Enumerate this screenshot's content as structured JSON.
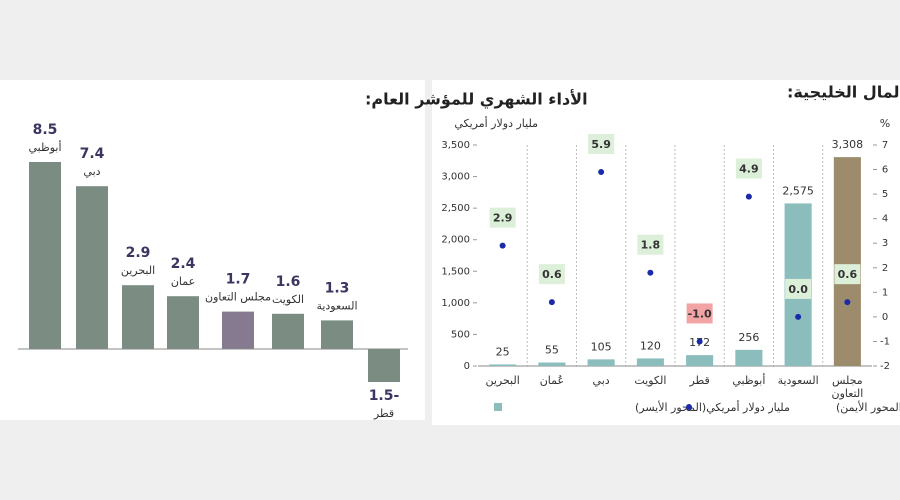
{
  "chart_data": [
    {
      "type": "bar",
      "title": "الأداء الشهري للمؤشر العام:",
      "categories": [
        "أبوظبي",
        "دبي",
        "البحرين",
        "عمان",
        "مجلس التعاون",
        "الكويت",
        "السعودية",
        "قطر"
      ],
      "values": [
        8.5,
        7.4,
        2.9,
        2.4,
        1.7,
        1.6,
        1.3,
        -1.5
      ],
      "value_labels": [
        "8.5",
        "7.4",
        "2.9",
        "2.4",
        "1.7",
        "1.6",
        "1.3",
        "1.5-"
      ],
      "colors": [
        "#7b8d82",
        "#7b8d82",
        "#7b8d82",
        "#7b8d82",
        "#857a90",
        "#7b8d82",
        "#7b8d82",
        "#7b8d82"
      ]
    },
    {
      "type": "combo",
      "title": "القيمة السوقية لأسواق المال الخليجية:",
      "y_label": "مليار دولار أمريكي",
      "y2_label": "%",
      "categories": [
        "البحرين",
        "عُمان",
        "دبي",
        "الكويت",
        "قطر",
        "أبوظبي",
        "السعودية",
        "مجلس التعاون"
      ],
      "ylim": [
        0,
        3500
      ],
      "yticks": [
        0,
        500,
        {
          "value": 1000,
          "label": "1,000"
        },
        {
          "value": 1500,
          "label": "1,500"
        },
        {
          "value": 2000,
          "label": "2,000"
        },
        {
          "value": 2500,
          "label": "2,500"
        },
        {
          "value": 3000,
          "label": "3,000"
        },
        {
          "value": 3500,
          "label": "3,500"
        }
      ],
      "y2lim": [
        -2,
        7
      ],
      "y2ticks": [
        -2,
        -1,
        0,
        1,
        2,
        3,
        4,
        5,
        6,
        7
      ],
      "series": [
        {
          "name": "مليار دولار أمريكي(المحور الأيسر)",
          "kind": "bar",
          "color": "#8cbdbd",
          "colors": [
            "#8cbdbd",
            "#8cbdbd",
            "#8cbdbd",
            "#8cbdbd",
            "#8cbdbd",
            "#8cbdbd",
            "#8cbdbd",
            "#9c8c6c"
          ],
          "values": [
            25,
            55,
            105,
            120,
            172,
            256,
            2575,
            3308
          ],
          "value_labels": [
            "25",
            "55",
            "105",
            "120",
            "172",
            "256",
            "2,575",
            "3,308"
          ]
        },
        {
          "name": "معدل النمو الشهري (المحور الأيمن)",
          "kind": "dot",
          "axis": "y2",
          "color": "#1b2aa8",
          "values": [
            2.9,
            0.6,
            5.9,
            1.8,
            -1.0,
            4.9,
            0.0,
            0.6
          ],
          "value_labels": [
            "2.9",
            "0.6",
            "5.9",
            "1.8",
            "-1.0",
            "4.9",
            "0.0",
            "0.6"
          ],
          "label_colors": [
            "#dcefd8",
            "#dcefd8",
            "#dcefd8",
            "#dcefd8",
            "#f2a3a3",
            "#dcefd8",
            "#dcefd8",
            "#dcefd8"
          ]
        }
      ]
    }
  ]
}
